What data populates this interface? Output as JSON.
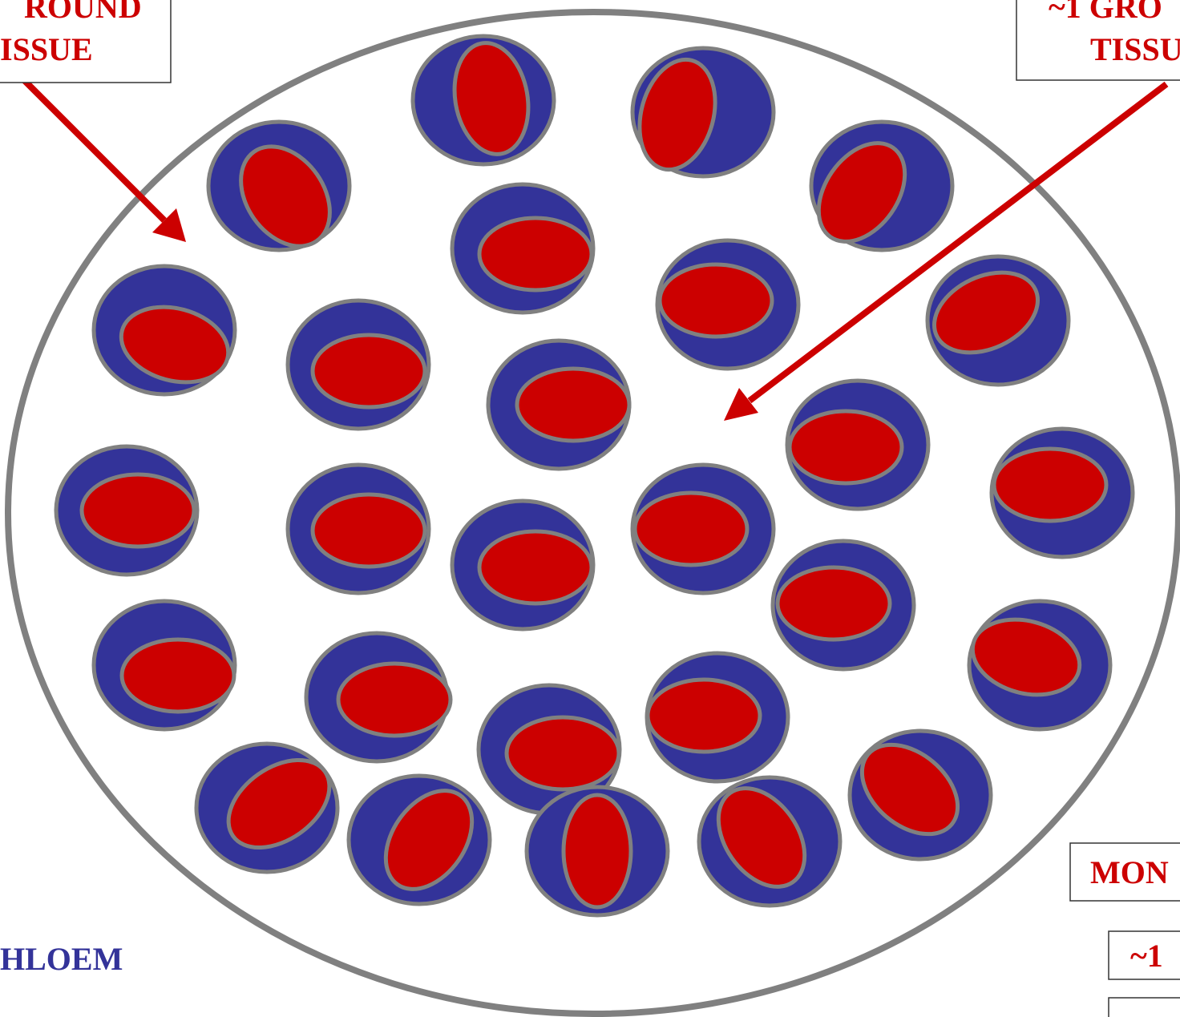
{
  "labels": {
    "top_left": [
      "ROUND",
      "ISSUE"
    ],
    "top_right": [
      "~1 GRO",
      "TISSU"
    ],
    "right_middle": "MON",
    "right_lower": "~1",
    "bottom_left": "HLOEM"
  }
}
